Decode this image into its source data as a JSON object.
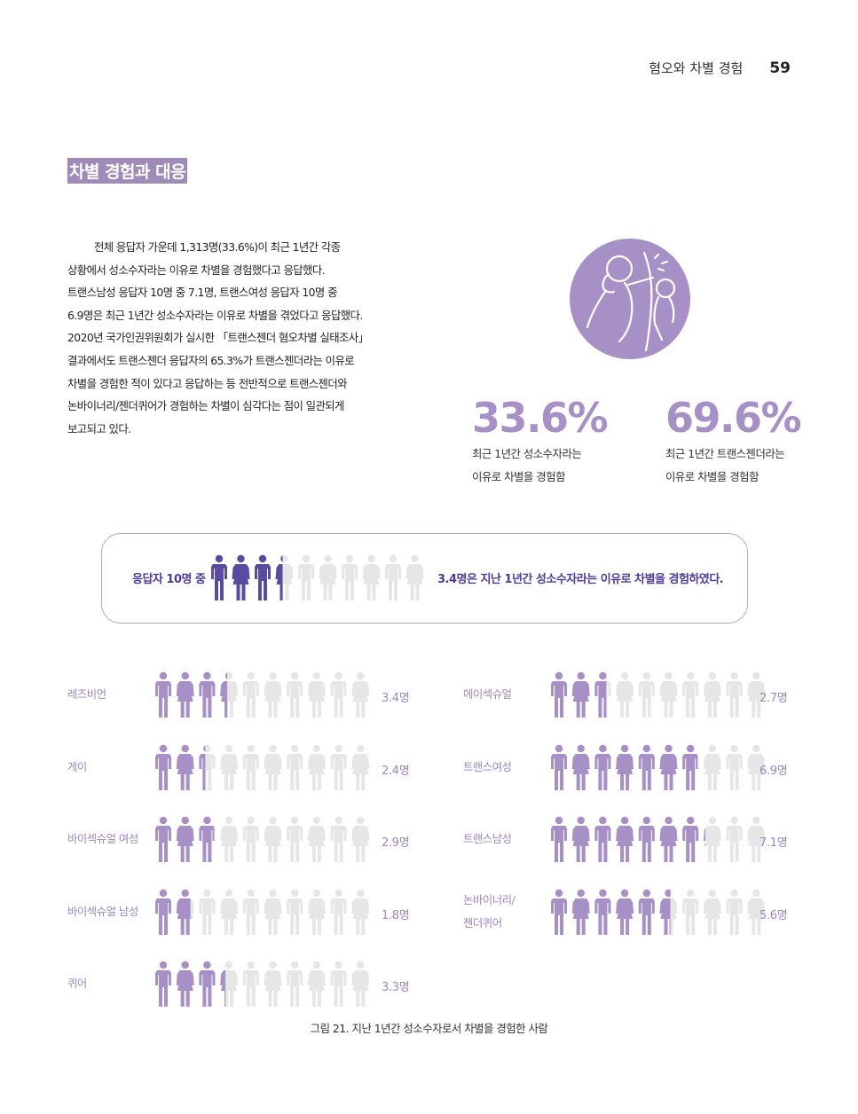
{
  "header": {
    "title": "혐오와 차별 경험",
    "page": "59"
  },
  "section_title": "차별 경험과 대응",
  "body_lines": [
    "전체 응답자 가운데 1,313명(33.6%)이 최근 1년간 각종",
    "상황에서 성소수자라는 이유로 차별을 경험했다고 응답했다.",
    "트랜스남성 응답자 10명 중 7.1명, 트랜스여성 응답자 10명 중",
    "6.9명은 최근 1년간 성소수자라는 이유로 차별을 겪었다고 응답했다.",
    "2020년 국가인권위원회가 실시한 「트랜스젠더 혐오차별 실태조사」",
    "결과에서도 트랜스젠더 응답자의 65.3%가 트랜스젠더라는 이유로",
    "차별을 경험한 적이 있다고 응답하는 등 전반적으로 트랜스젠더와",
    "논바이너리/젠더퀴어가 경험하는 차별이 심각다는 점이 일관되게",
    "보고되고 있다."
  ],
  "stats": [
    {
      "value": "33.6%",
      "desc_line1": "최근 1년간 성소수자라는",
      "desc_line2": "이유로 차별을 경험함"
    },
    {
      "value": "69.6%",
      "desc_line1": "최근 1년간 트랜스젠더라는",
      "desc_line2": "이유로 차별을 경험함"
    }
  ],
  "summary": {
    "prefix": "응답자 10명 중",
    "text": "3.4명은 지난 1년간 성소수자라는 이유로 차별을 경험하였다.",
    "count": 3.4
  },
  "chart_data": {
    "type": "table",
    "unit": "명",
    "total": 10,
    "groups": [
      {
        "label": "레즈비언",
        "value": 3.4,
        "value_label": "3.4명"
      },
      {
        "label": "게이",
        "value": 2.4,
        "value_label": "2.4명"
      },
      {
        "label": "바이섹슈얼 여성",
        "value": 2.9,
        "value_label": "2.9명"
      },
      {
        "label": "바이섹슈얼 남성",
        "value": 1.8,
        "value_label": "1.8명"
      },
      {
        "label": "퀴어",
        "value": 3.3,
        "value_label": "3.3명"
      },
      {
        "label": "에이섹슈얼",
        "value": 2.7,
        "value_label": "2.7명"
      },
      {
        "label": "트랜스여성",
        "value": 6.9,
        "value_label": "6.9명"
      },
      {
        "label": "트랜스남성",
        "value": 7.1,
        "value_label": "7.1명"
      },
      {
        "label_line1": "논바이너리/",
        "label_line2": "젠더퀴어",
        "value": 5.6,
        "value_label": "5.6명"
      }
    ]
  },
  "caption": "그림 21. 지난 1년간 성소수자로서 차별을 경험한 사람",
  "colors": {
    "accent": "#a790c5",
    "summary_fill": "#5a4aa0",
    "icon_empty": "#e6e6e6",
    "label": "#9c87bd"
  }
}
